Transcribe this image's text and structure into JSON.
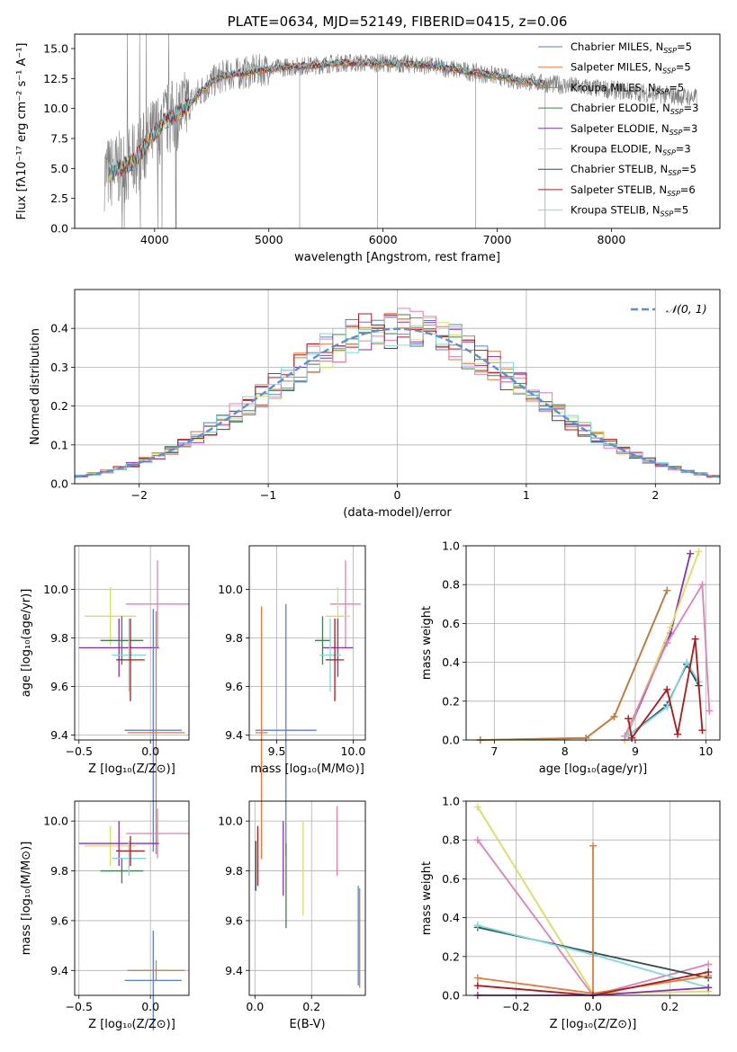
{
  "colors": {
    "Chabrier MILES": "#5b7fd0",
    "Salpeter MILES": "#e37a38",
    "Kroupa MILES": "#c27a3a",
    "Chabrier ELODIE": "#3f7f4f",
    "Salpeter ELODIE": "#8b2fb0",
    "Kroupa ELODIE": "#d8e05a",
    "Chabrier STELIB": "#2f4f4f",
    "Salpeter STELIB": "#b01818",
    "Kroupa STELIB": "#7fd8e0",
    "pink": "#e07fb8",
    "data_gray": "#808080",
    "gaussian": "#5b8fd8"
  },
  "chart_data": [
    {
      "id": "spectrum",
      "type": "line",
      "title": "PLATE=0634, MJD=52149, FIBERID=0415, z=0.06",
      "xlabel": "wavelength [Angstrom, rest frame]",
      "ylabel": "Flux [fλ10⁻¹⁷ erg cm⁻² s⁻¹ A⁻¹]",
      "xlim": [
        3300,
        8950
      ],
      "ylim": [
        0,
        16.2
      ],
      "xticks": [
        "4000",
        "5000",
        "6000",
        "7000",
        "8000"
      ],
      "yticks": [
        "0.0",
        "2.5",
        "5.0",
        "7.5",
        "10.0",
        "12.5",
        "15.0"
      ],
      "grid": false,
      "legend_position": "top-right",
      "legend": [
        {
          "label": "Chabrier MILES, N",
          "sub": "SSP",
          "tail": "=5"
        },
        {
          "label": "Salpeter MILES, N",
          "sub": "SSP",
          "tail": "=5"
        },
        {
          "label": "Kroupa MILES, N",
          "sub": "SSP",
          "tail": "=5"
        },
        {
          "label": "Chabrier ELODIE, N",
          "sub": "SSP",
          "tail": "=3"
        },
        {
          "label": "Salpeter ELODIE, N",
          "sub": "SSP",
          "tail": "=3"
        },
        {
          "label": "Kroupa ELODIE, N",
          "sub": "SSP",
          "tail": "=3"
        },
        {
          "label": "Chabrier STELIB, N",
          "sub": "SSP",
          "tail": "=5"
        },
        {
          "label": "Salpeter STELIB, N",
          "sub": "SSP",
          "tail": "=6"
        },
        {
          "label": "Kroupa STELIB, N",
          "sub": "SSP",
          "tail": "=5"
        }
      ],
      "model_curve": {
        "x": [
          3600,
          3700,
          3800,
          3900,
          4000,
          4100,
          4200,
          4300,
          4400,
          4500,
          4600,
          4700,
          4800,
          5000,
          5200,
          5400,
          5600,
          5800,
          6000,
          6200,
          6400,
          6600,
          6800,
          7000,
          7200,
          7400
        ],
        "y": [
          4.6,
          5.0,
          5.5,
          6.6,
          8.0,
          9.0,
          9.6,
          10.3,
          11.4,
          12.2,
          12.7,
          12.9,
          13.0,
          13.3,
          13.5,
          13.6,
          13.8,
          13.8,
          13.8,
          13.7,
          13.6,
          13.3,
          13.0,
          12.7,
          12.3,
          12.1
        ]
      },
      "data_extent": [
        3560,
        8750
      ]
    },
    {
      "id": "residuals",
      "type": "bar",
      "xlabel": "(data-model)/error",
      "ylabel": "Normed distribution",
      "xlim": [
        -2.5,
        2.5
      ],
      "ylim": [
        0,
        0.5
      ],
      "xticks": [
        "−2",
        "−1",
        "0",
        "1",
        "2"
      ],
      "yticks": [
        "0.0",
        "0.1",
        "0.2",
        "0.3",
        "0.4"
      ],
      "grid": true,
      "legend_position": "top-right",
      "legend": [
        {
          "label": "𝒩(0, 1)"
        }
      ],
      "bin_width": 0.1,
      "gaussian": {
        "mean": 0,
        "sigma": 1
      }
    },
    {
      "id": "age-vs-Z",
      "type": "scatter",
      "xlabel": "Z [log₁₀(Z/Z⊙)]",
      "ylabel": "age  [log₁₀(age/yr)]",
      "xlim": [
        -0.53,
        0.27
      ],
      "ylim": [
        9.38,
        10.18
      ],
      "xticks": [
        "−0.5",
        "0.0"
      ],
      "yticks": [
        "9.4",
        "9.6",
        "9.8",
        "10.0"
      ],
      "grid": true,
      "crosses": [
        {
          "color": "pink",
          "x": 0.05,
          "xerr": 0.22,
          "y": 9.94,
          "yerr": 0.18
        },
        {
          "color": "Kroupa ELODIE",
          "x": -0.28,
          "xerr": 0.18,
          "y": 9.89,
          "yerr": 0.12
        },
        {
          "color": "Salpeter ELODIE",
          "x": -0.22,
          "xerr": 0.28,
          "y": 9.76,
          "yerr": 0.12
        },
        {
          "color": "Chabrier ELODIE",
          "x": -0.2,
          "xerr": 0.15,
          "y": 9.79,
          "yerr": 0.1
        },
        {
          "color": "Kroupa STELIB",
          "x": -0.15,
          "xerr": 0.12,
          "y": 9.73,
          "yerr": 0.15
        },
        {
          "color": "Salpeter STELIB",
          "x": -0.14,
          "xerr": 0.1,
          "y": 9.71,
          "yerr": 0.17
        },
        {
          "color": "Chabrier MILES",
          "x": 0.02,
          "xerr": 0.2,
          "y": 9.42,
          "yerr": 0.5
        },
        {
          "color": "Salpeter MILES",
          "x": 0.04,
          "xerr": 0.2,
          "y": 9.41,
          "yerr": 0.5
        }
      ]
    },
    {
      "id": "age-vs-mass",
      "type": "scatter",
      "xlabel": "mass [log₁₀(M/M⊙)]",
      "ylabel": "",
      "xlim": [
        9.32,
        10.08
      ],
      "ylim": [
        9.38,
        10.18
      ],
      "xticks": [
        "9.5",
        "10.0"
      ],
      "yticks": [
        "9.4",
        "9.6",
        "9.8",
        "10.0"
      ],
      "grid": true,
      "crosses": [
        {
          "color": "pink",
          "x": 9.95,
          "xerr": 0.1,
          "y": 9.94,
          "yerr": 0.18
        },
        {
          "color": "Kroupa ELODIE",
          "x": 9.9,
          "xerr": 0.08,
          "y": 9.89,
          "yerr": 0.12
        },
        {
          "color": "Salpeter ELODIE",
          "x": 9.9,
          "xerr": 0.1,
          "y": 9.76,
          "yerr": 0.12
        },
        {
          "color": "Chabrier ELODIE",
          "x": 9.8,
          "xerr": 0.05,
          "y": 9.79,
          "yerr": 0.1
        },
        {
          "color": "Kroupa STELIB",
          "x": 9.85,
          "xerr": 0.07,
          "y": 9.73,
          "yerr": 0.15
        },
        {
          "color": "Salpeter STELIB",
          "x": 9.88,
          "xerr": 0.06,
          "y": 9.71,
          "yerr": 0.17
        },
        {
          "color": "Chabrier MILES",
          "x": 9.56,
          "xerr": 0.2,
          "y": 9.42,
          "yerr": 0.52
        },
        {
          "color": "Salpeter MILES",
          "x": 9.4,
          "xerr": 0.04,
          "y": 9.41,
          "yerr": 0.52
        }
      ]
    },
    {
      "id": "massweight-vs-age",
      "type": "line",
      "xlabel": "age  [log₁₀(age/yr)]",
      "ylabel": "mass weight",
      "xlim": [
        6.6,
        10.2
      ],
      "ylim": [
        0,
        1
      ],
      "xticks": [
        "7",
        "8",
        "9",
        "10"
      ],
      "yticks": [
        "0.0",
        "0.2",
        "0.4",
        "0.6",
        "0.8",
        "1.0"
      ],
      "grid": true,
      "series": [
        {
          "color": "Salpeter MILES",
          "x": [
            6.8,
            8.3,
            8.7,
            9.45
          ],
          "y": [
            0.0,
            0.01,
            0.12,
            0.77
          ]
        },
        {
          "color": "Kroupa MILES",
          "x": [
            6.8,
            8.3,
            8.7,
            9.45
          ],
          "y": [
            0.0,
            0.01,
            0.12,
            0.77
          ]
        },
        {
          "color": "Salpeter ELODIE",
          "x": [
            8.85,
            9.5,
            9.78
          ],
          "y": [
            0.0,
            0.55,
            0.96
          ]
        },
        {
          "color": "Kroupa ELODIE",
          "x": [
            8.85,
            9.5,
            9.9
          ],
          "y": [
            0.0,
            0.58,
            0.97
          ]
        },
        {
          "color": "pink",
          "x": [
            8.85,
            9.45,
            9.95,
            10.05
          ],
          "y": [
            0.02,
            0.5,
            0.8,
            0.15
          ]
        },
        {
          "color": "Chabrier STELIB",
          "x": [
            8.9,
            9.45,
            9.73,
            9.9
          ],
          "y": [
            0.02,
            0.18,
            0.39,
            0.28
          ]
        },
        {
          "color": "Kroupa STELIB",
          "x": [
            8.9,
            9.45,
            9.73,
            9.9
          ],
          "y": [
            0.02,
            0.17,
            0.4,
            0.3
          ]
        },
        {
          "color": "Salpeter STELIB",
          "x": [
            8.9,
            8.95,
            9.45,
            9.6,
            9.85,
            9.95
          ],
          "y": [
            0.11,
            0.01,
            0.26,
            0.03,
            0.52,
            0.05
          ]
        }
      ]
    },
    {
      "id": "mass-vs-Z",
      "type": "scatter",
      "xlabel": "Z [log₁₀(Z/Z⊙)]",
      "ylabel": "mass [log₁₀(M/M⊙)]",
      "xlim": [
        -0.53,
        0.27
      ],
      "ylim": [
        9.3,
        10.08
      ],
      "xticks": [
        "−0.5",
        "0.0"
      ],
      "yticks": [
        "9.4",
        "9.6",
        "9.8",
        "10.0"
      ],
      "grid": true,
      "crosses": [
        {
          "color": "pink",
          "x": 0.05,
          "xerr": 0.22,
          "y": 9.95,
          "yerr": 0.1
        },
        {
          "color": "Kroupa ELODIE",
          "x": -0.28,
          "xerr": 0.18,
          "y": 9.9,
          "yerr": 0.08
        },
        {
          "color": "Salpeter ELODIE",
          "x": -0.22,
          "xerr": 0.28,
          "y": 9.91,
          "yerr": 0.09
        },
        {
          "color": "Chabrier ELODIE",
          "x": -0.2,
          "xerr": 0.15,
          "y": 9.8,
          "yerr": 0.05
        },
        {
          "color": "Kroupa STELIB",
          "x": -0.15,
          "xerr": 0.12,
          "y": 9.85,
          "yerr": 0.07
        },
        {
          "color": "Salpeter STELIB",
          "x": -0.14,
          "xerr": 0.1,
          "y": 9.88,
          "yerr": 0.06
        },
        {
          "color": "Chabrier MILES",
          "x": 0.02,
          "xerr": 0.2,
          "y": 9.36,
          "yerr": 0.2
        },
        {
          "color": "Salpeter MILES",
          "x": 0.04,
          "xerr": 0.2,
          "y": 9.4,
          "yerr": 0.04
        }
      ]
    },
    {
      "id": "mass-vs-ebv",
      "type": "scatter",
      "xlabel": "E(B-V)",
      "ylabel": "",
      "xlim": [
        -0.02,
        0.39
      ],
      "ylim": [
        9.3,
        10.08
      ],
      "xticks": [
        "0.0",
        "0.2"
      ],
      "yticks": [
        "9.4",
        "9.6",
        "9.8",
        "10.0"
      ],
      "grid": true,
      "vbars": [
        {
          "color": "Chabrier STELIB",
          "x": 0.003,
          "y": 9.82,
          "yerr": 0.1
        },
        {
          "color": "Salpeter STELIB",
          "x": 0.01,
          "y": 9.86,
          "yerr": 0.12
        },
        {
          "color": "Salpeter ELODIE",
          "x": 0.1,
          "y": 9.85,
          "yerr": 0.15
        },
        {
          "color": "Chabrier ELODIE",
          "x": 0.11,
          "y": 9.74,
          "yerr": 0.17
        },
        {
          "color": "Kroupa ELODIE",
          "x": 0.17,
          "y": 9.81,
          "yerr": 0.19
        },
        {
          "color": "pink",
          "x": 0.29,
          "y": 9.92,
          "yerr": 0.14
        },
        {
          "color": "Chabrier MILES",
          "x": 0.365,
          "y": 9.54,
          "yerr": 0.2
        },
        {
          "color": "Salpeter MILES",
          "x": 0.37,
          "y": 9.53,
          "yerr": 0.2
        }
      ]
    },
    {
      "id": "massweight-vs-Z",
      "type": "line",
      "xlabel": "Z [log₁₀(Z/Z⊙)]",
      "ylabel": "mass weight",
      "xlim": [
        -0.33,
        0.33
      ],
      "ylim": [
        0,
        1
      ],
      "xticks": [
        "−0.2",
        "0.0",
        "0.2"
      ],
      "yticks": [
        "0.0",
        "0.2",
        "0.4",
        "0.6",
        "0.8",
        "1.0"
      ],
      "grid": true,
      "series": [
        {
          "color": "Kroupa ELODIE",
          "x": [
            -0.3,
            0.0,
            0.3
          ],
          "y": [
            0.97,
            0.01,
            0.02
          ]
        },
        {
          "color": "pink",
          "x": [
            -0.3,
            0.0,
            0.3
          ],
          "y": [
            0.8,
            0.0,
            0.16
          ]
        },
        {
          "color": "Chabrier STELIB",
          "x": [
            -0.3,
            0.0,
            0.3
          ],
          "y": [
            0.35,
            0.22,
            0.09
          ]
        },
        {
          "color": "Kroupa STELIB",
          "x": [
            -0.3,
            0.0,
            0.3
          ],
          "y": [
            0.36,
            0.21,
            0.04
          ]
        },
        {
          "color": "Salpeter MILES",
          "x": [
            -0.3,
            0.0,
            0.0,
            0.0,
            0.3
          ],
          "y": [
            0.09,
            0.01,
            0.77,
            0.01,
            0.1
          ]
        },
        {
          "color": "Salpeter STELIB",
          "x": [
            -0.3,
            0.0,
            0.3
          ],
          "y": [
            0.05,
            0.0,
            0.12
          ]
        },
        {
          "color": "Salpeter ELODIE",
          "x": [
            -0.3,
            0.0,
            0.3
          ],
          "y": [
            0.0,
            0.0,
            0.04
          ]
        }
      ]
    }
  ]
}
